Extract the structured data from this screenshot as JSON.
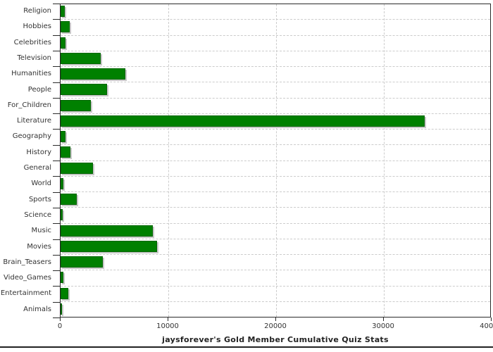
{
  "chart_data": {
    "type": "bar",
    "orientation": "horizontal",
    "title": "jaysforever's Gold Member Cumulative Quiz Stats",
    "categories": [
      "Religion",
      "Hobbies",
      "Celebrities",
      "Television",
      "Humanities",
      "People",
      "For_Children",
      "Literature",
      "Geography",
      "History",
      "General",
      "World",
      "Sports",
      "Science",
      "Music",
      "Movies",
      "Brain_Teasers",
      "Video_Games",
      "Entertainment",
      "Animals"
    ],
    "values": [
      390,
      860,
      480,
      3760,
      6010,
      4300,
      2820,
      33900,
      440,
      910,
      3040,
      280,
      1520,
      200,
      8570,
      8960,
      3930,
      280,
      720,
      150
    ],
    "xlabel": "",
    "ylabel": "",
    "xlim": [
      0,
      40000
    ],
    "x_ticks": [
      0,
      10000,
      20000,
      30000,
      40000
    ],
    "x_tick_labels": [
      "0",
      "10000",
      "20000",
      "30000",
      "40000"
    ],
    "grid": "dashed",
    "legend": "none",
    "bar_color": "#008000",
    "bar_border_color": "#006600",
    "shadow_color": "#c8c8c8",
    "gridline_color": "#cccccc",
    "axis_color": "#2a2a2a",
    "label_color": "#333333"
  }
}
